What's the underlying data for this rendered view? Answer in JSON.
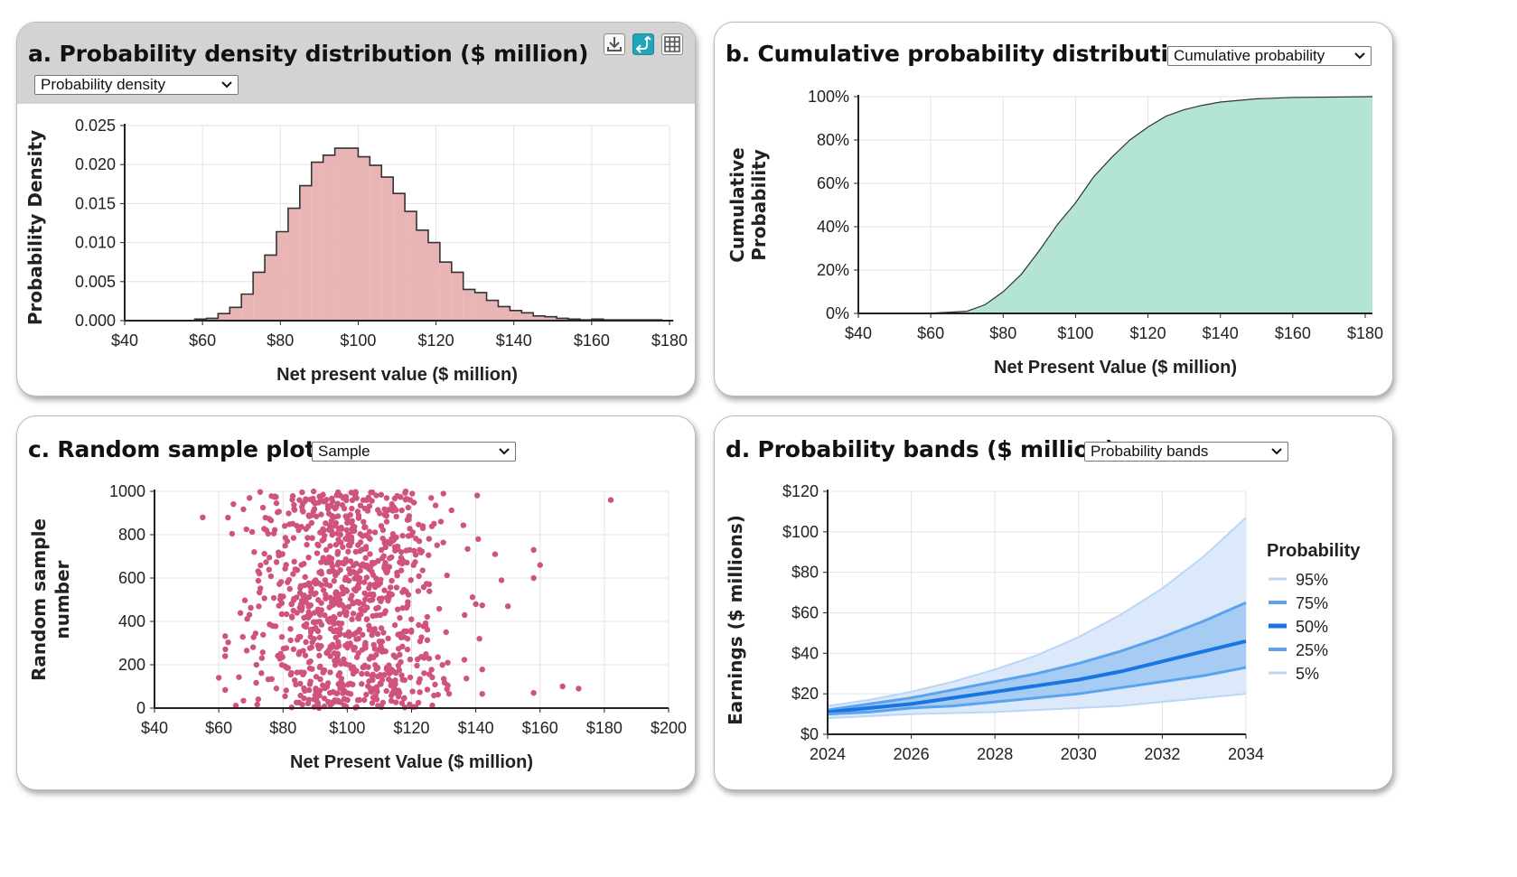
{
  "panels": {
    "a": {
      "title": "a. Probability density distribution ($ million)",
      "select_value": "Probability density",
      "tools": [
        "download-icon",
        "swap-icon",
        "table-icon"
      ]
    },
    "b": {
      "title": "b. Cumulative probability distribution",
      "select_value": "Cumulative probability"
    },
    "c": {
      "title": "c. Random sample plot",
      "select_value": "Sample"
    },
    "d": {
      "title": "d. Probability bands ($ million)",
      "select_value": "Probability bands"
    }
  },
  "chart_data": [
    {
      "id": "a",
      "type": "bar",
      "ylabel": "Probability Density",
      "xlabel": "Net present value ($ million)",
      "xlim": [
        40,
        180
      ],
      "ylim": [
        0,
        0.025
      ],
      "xticks": [
        "$40",
        "$60",
        "$80",
        "$100",
        "$120",
        "$140",
        "$160",
        "$180"
      ],
      "yticks": [
        "0.000",
        "0.005",
        "0.010",
        "0.015",
        "0.020",
        "0.025"
      ],
      "bin_start": 52,
      "bin_width": 3,
      "values": [
        0.0,
        0.0,
        0.0002,
        0.0003,
        0.0009,
        0.0017,
        0.0034,
        0.0062,
        0.0084,
        0.0114,
        0.0144,
        0.0173,
        0.0203,
        0.0212,
        0.0221,
        0.0221,
        0.021,
        0.0199,
        0.0184,
        0.0163,
        0.014,
        0.0116,
        0.01,
        0.0075,
        0.0062,
        0.004,
        0.0036,
        0.0026,
        0.0018,
        0.0013,
        0.001,
        0.0006,
        0.0005,
        0.0003,
        0.0002,
        0.0001,
        0.0002,
        0.0001,
        0.0001,
        0.0001,
        0.0001,
        0.0001,
        0.0
      ],
      "grid": true,
      "color": "#e8b4b4"
    },
    {
      "id": "b",
      "type": "area",
      "ylabel": "Cumulative Probability",
      "xlabel": "Net Present Value ($ million)",
      "xlim": [
        40,
        182
      ],
      "ylim": [
        0,
        100
      ],
      "xticks": [
        "$40",
        "$60",
        "$80",
        "$100",
        "$120",
        "$140",
        "$160",
        "$180"
      ],
      "yticks": [
        "0%",
        "20%",
        "40%",
        "60%",
        "80%",
        "100%"
      ],
      "x": [
        40,
        60,
        70,
        75,
        80,
        85,
        90,
        95,
        100,
        105,
        110,
        115,
        120,
        125,
        130,
        135,
        140,
        150,
        160,
        182
      ],
      "y": [
        0,
        0.1,
        1,
        4,
        10,
        18,
        29,
        41,
        51,
        63,
        72,
        80,
        86,
        91,
        94,
        96,
        97.5,
        99,
        99.6,
        100
      ],
      "grid": true,
      "color": "#b4e5d2"
    },
    {
      "id": "c",
      "type": "scatter",
      "ylabel": "Random sample number",
      "xlabel": "Net Present Value ($ million)",
      "xlim": [
        40,
        200
      ],
      "ylim": [
        0,
        1000
      ],
      "xticks": [
        "$40",
        "$60",
        "$80",
        "$100",
        "$120",
        "$140",
        "$160",
        "$180",
        "$200"
      ],
      "yticks": [
        "0",
        "200",
        "400",
        "600",
        "800",
        "1000"
      ],
      "n_samples": 1000,
      "x_mean": 100,
      "x_sd": 18,
      "outliers": [
        [
          182,
          960
        ],
        [
          55,
          880
        ],
        [
          60,
          140
        ],
        [
          62,
          240
        ],
        [
          172,
          90
        ],
        [
          167,
          100
        ],
        [
          160,
          660
        ],
        [
          158,
          730
        ],
        [
          158,
          600
        ],
        [
          158,
          70
        ],
        [
          150,
          470
        ],
        [
          148,
          590
        ],
        [
          146,
          710
        ],
        [
          140,
          480
        ]
      ],
      "grid": true,
      "color": "#d0537b"
    },
    {
      "id": "d",
      "type": "area",
      "ylabel": "Earnings ($ millions)",
      "xlim": [
        2024,
        2034
      ],
      "ylim": [
        0,
        120
      ],
      "xticks": [
        "2024",
        "2026",
        "2028",
        "2030",
        "2032",
        "2034"
      ],
      "yticks": [
        "$0",
        "$20",
        "$40",
        "$60",
        "$80",
        "$100",
        "$120"
      ],
      "legend_title": "Probability",
      "legend_position": "right",
      "x": [
        2024,
        2025,
        2026,
        2027,
        2028,
        2029,
        2030,
        2031,
        2032,
        2033,
        2034
      ],
      "series": [
        {
          "name": "95%",
          "values": [
            14,
            17,
            21,
            26,
            32,
            39,
            48,
            59,
            72,
            88,
            107
          ],
          "color": "#bad6f6"
        },
        {
          "name": "75%",
          "values": [
            12,
            15,
            18,
            22,
            26,
            30,
            35,
            41,
            48,
            56,
            65
          ],
          "color": "#5ba3ee"
        },
        {
          "name": "50%",
          "values": [
            11,
            13,
            15,
            18,
            21,
            24,
            27,
            31,
            36,
            41,
            46
          ],
          "color": "#1975df"
        },
        {
          "name": "25%",
          "values": [
            10,
            11,
            13,
            14,
            16,
            18,
            20,
            23,
            26,
            29,
            33
          ],
          "color": "#5ba3ee"
        },
        {
          "name": "5%",
          "values": [
            8,
            9,
            10,
            10.5,
            11,
            12,
            13,
            14,
            16,
            18,
            20
          ],
          "color": "#bad6f6"
        }
      ],
      "grid": true
    }
  ]
}
